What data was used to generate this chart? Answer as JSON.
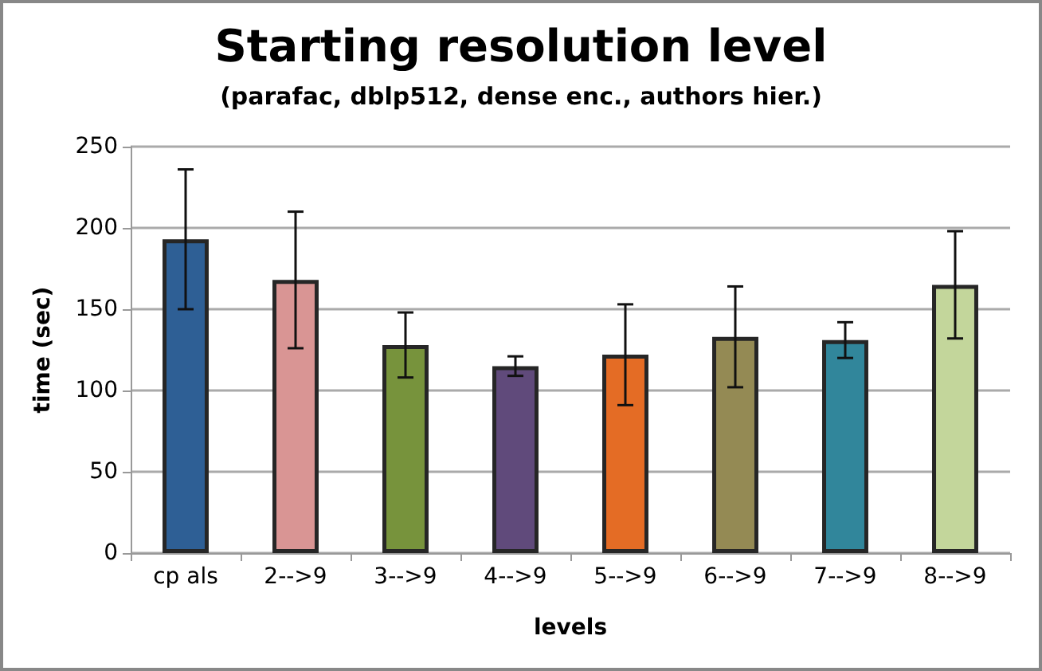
{
  "chart_data": {
    "type": "bar",
    "title": "Starting resolution level",
    "subtitle": "(parafac, dblp512, dense enc., authors hier.)",
    "xlabel": "levels",
    "ylabel": "time (sec)",
    "categories": [
      "cp als",
      "2-->9",
      "3-->9",
      "4-->9",
      "5-->9",
      "6-->9",
      "7-->9",
      "8-->9"
    ],
    "values": [
      193,
      168,
      128,
      115,
      122,
      133,
      131,
      165
    ],
    "colors": [
      "#2e5f95",
      "#d99594",
      "#77933c",
      "#604a7b",
      "#e46c25",
      "#948a54",
      "#31869b",
      "#c3d69b"
    ],
    "errors": [
      43,
      42,
      20,
      6,
      31,
      31,
      11,
      33
    ],
    "ylim": [
      0,
      250
    ],
    "yticks": [
      0,
      50,
      100,
      150,
      200,
      250
    ],
    "grid": "y"
  }
}
